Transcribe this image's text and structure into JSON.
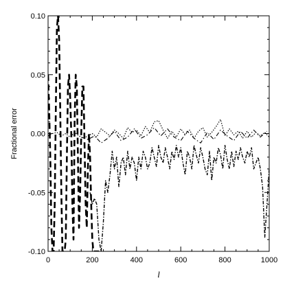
{
  "chart_data": {
    "type": "line",
    "title": "",
    "xlabel": "l",
    "ylabel": "Fractional error",
    "xlim": [
      0,
      1000
    ],
    "ylim": [
      -0.1,
      0.1
    ],
    "x_ticks": [
      0,
      200,
      400,
      600,
      800,
      1000
    ],
    "x_tick_labels": [
      "0",
      "200",
      "400",
      "600",
      "800",
      "1000"
    ],
    "y_ticks": [
      -0.1,
      -0.05,
      0.0,
      0.05,
      0.1
    ],
    "y_tick_labels": [
      "-0.10",
      "-0.05",
      "0.00",
      "0.05",
      "0.10"
    ],
    "grid": false,
    "legend": "none",
    "series": [
      {
        "style": "dashed-heavy",
        "x": [
          0,
          5,
          10,
          15,
          20,
          25,
          30,
          35,
          40,
          45,
          50,
          55,
          60,
          65,
          70,
          75,
          80,
          85,
          90,
          95,
          100,
          105,
          110,
          115,
          120,
          125,
          130,
          135,
          140,
          145,
          150,
          155,
          160,
          165,
          170,
          175,
          180,
          185,
          190,
          195,
          200,
          205,
          210,
          215,
          220,
          225,
          230
        ],
        "y": [
          0.05,
          0.02,
          -0.02,
          -0.08,
          -0.1,
          -0.1,
          -0.06,
          0.02,
          0.09,
          0.1,
          0.08,
          0.02,
          -0.05,
          -0.1,
          -0.1,
          -0.1,
          -0.09,
          -0.02,
          0.04,
          0.05,
          0.03,
          0.0,
          -0.06,
          -0.09,
          0.01,
          0.05,
          0.04,
          -0.02,
          -0.08,
          -0.05,
          0.0,
          0.04,
          0.04,
          -0.01,
          -0.06,
          -0.08,
          -0.03,
          0.0,
          -0.02,
          -0.06,
          -0.09,
          -0.1,
          -0.1,
          -0.1,
          -0.1,
          -0.1,
          -0.1
        ]
      },
      {
        "style": "dotted",
        "x": [
          0,
          20,
          40,
          60,
          80,
          100,
          120,
          140,
          160,
          180,
          200,
          220,
          240,
          260,
          280,
          300,
          320,
          340,
          360,
          380,
          400,
          420,
          440,
          460,
          480,
          500,
          520,
          540,
          560,
          580,
          600,
          620,
          640,
          660,
          680,
          700,
          720,
          740,
          760,
          780,
          800,
          820,
          840,
          860,
          880,
          900,
          920,
          940,
          960,
          980,
          1000
        ],
        "y": [
          -0.002,
          0.0,
          0.001,
          -0.002,
          0.0,
          -0.003,
          0.001,
          -0.002,
          -0.004,
          -0.002,
          0.0,
          -0.003,
          0.004,
          0.001,
          -0.002,
          0.003,
          0.0,
          -0.004,
          0.005,
          0.001,
          0.003,
          -0.002,
          0.006,
          0.001,
          0.01,
          0.011,
          0.003,
          -0.004,
          0.002,
          -0.003,
          0.004,
          -0.001,
          0.003,
          -0.004,
          0.002,
          0.005,
          -0.003,
          0.001,
          0.006,
          0.012,
          -0.002,
          0.004,
          -0.001,
          0.002,
          -0.004,
          0.002,
          -0.003,
          0.001,
          -0.002,
          0.001,
          -0.003
        ]
      },
      {
        "style": "dash-dot-near-zero",
        "x": [
          150,
          180,
          210,
          240,
          270,
          300,
          330,
          360,
          390,
          420,
          450,
          480,
          510,
          540,
          570,
          600,
          630,
          660,
          690,
          720,
          750,
          780,
          810,
          840,
          870,
          900,
          930,
          960,
          990
        ],
        "y": [
          -0.003,
          -0.005,
          -0.002,
          -0.008,
          -0.004,
          0.002,
          -0.006,
          -0.003,
          0.004,
          -0.004,
          -0.001,
          0.005,
          -0.002,
          0.004,
          -0.003,
          -0.006,
          0.002,
          -0.004,
          -0.008,
          0.001,
          -0.005,
          0.003,
          -0.002,
          -0.006,
          0.002,
          -0.004,
          0.003,
          -0.003,
          0.002
        ]
      },
      {
        "style": "dash-dot",
        "x": [
          190,
          200,
          210,
          220,
          230,
          240,
          250,
          260,
          270,
          280,
          290,
          300,
          310,
          320,
          330,
          340,
          350,
          360,
          370,
          380,
          390,
          400,
          410,
          420,
          430,
          440,
          450,
          460,
          470,
          480,
          490,
          500,
          510,
          520,
          530,
          540,
          550,
          560,
          570,
          580,
          590,
          600,
          610,
          620,
          630,
          640,
          650,
          660,
          670,
          680,
          690,
          700,
          710,
          720,
          730,
          740,
          750,
          760,
          770,
          780,
          790,
          800,
          810,
          820,
          830,
          840,
          850,
          860,
          870,
          880,
          890,
          900,
          910,
          920,
          930,
          940,
          950,
          960,
          970,
          980,
          990,
          1000
        ],
        "y": [
          -0.05,
          -0.06,
          -0.055,
          -0.06,
          -0.09,
          -0.1,
          -0.075,
          -0.04,
          -0.05,
          -0.035,
          -0.015,
          -0.03,
          -0.02,
          -0.045,
          -0.025,
          -0.02,
          -0.035,
          -0.015,
          -0.03,
          -0.02,
          -0.025,
          -0.04,
          -0.02,
          -0.03,
          -0.015,
          -0.02,
          -0.03,
          -0.025,
          -0.012,
          -0.02,
          -0.028,
          -0.01,
          -0.02,
          -0.025,
          -0.012,
          -0.02,
          -0.03,
          -0.015,
          -0.022,
          -0.01,
          -0.02,
          -0.012,
          -0.025,
          -0.035,
          -0.015,
          -0.02,
          -0.03,
          -0.01,
          -0.018,
          -0.025,
          -0.012,
          -0.02,
          -0.03,
          -0.035,
          -0.015,
          -0.04,
          -0.02,
          -0.025,
          -0.012,
          -0.018,
          -0.03,
          -0.01,
          -0.022,
          -0.03,
          -0.015,
          -0.028,
          -0.015,
          -0.022,
          -0.012,
          -0.02,
          -0.025,
          -0.015,
          -0.02,
          -0.012,
          -0.03,
          -0.025,
          -0.02,
          -0.03,
          -0.045,
          -0.088,
          -0.06,
          -0.03
        ]
      }
    ]
  }
}
